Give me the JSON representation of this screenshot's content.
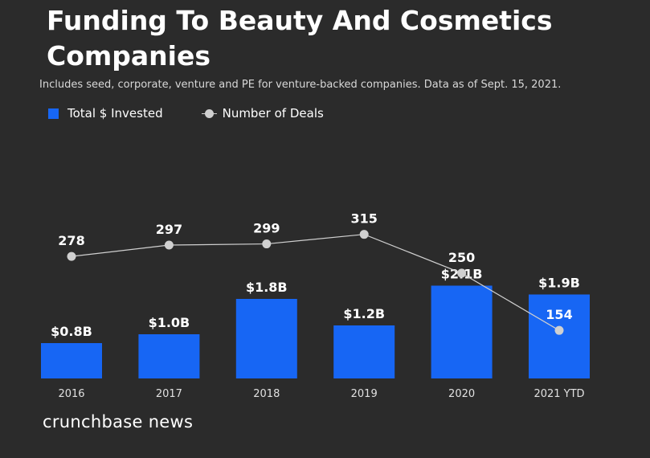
{
  "chart_data": {
    "type": "bar",
    "title": "Funding To Beauty And Cosmetics Companies",
    "subtitle": "Includes seed, corporate, venture and PE for venture-backed companies. Data as of Sept. 15, 2021.",
    "categories": [
      "2016",
      "2017",
      "2018",
      "2019",
      "2020",
      "2021 YTD"
    ],
    "series": [
      {
        "name": "Total $ Invested",
        "type": "bar",
        "values": [
          0.8,
          1.0,
          1.8,
          1.2,
          2.1,
          1.9
        ],
        "labels": [
          "$0.8B",
          "$1.0B",
          "$1.8B",
          "$1.2B",
          "$2.1B",
          "$1.9B"
        ],
        "color": "#1766f4"
      },
      {
        "name": "Number of Deals",
        "type": "line",
        "values": [
          278,
          297,
          299,
          315,
          250,
          154
        ],
        "labels": [
          "278",
          "297",
          "299",
          "315",
          "250",
          "154"
        ],
        "color": "#d0d0d0"
      }
    ],
    "legend": "top-left",
    "grid": false
  },
  "brand": "crunchbase news"
}
